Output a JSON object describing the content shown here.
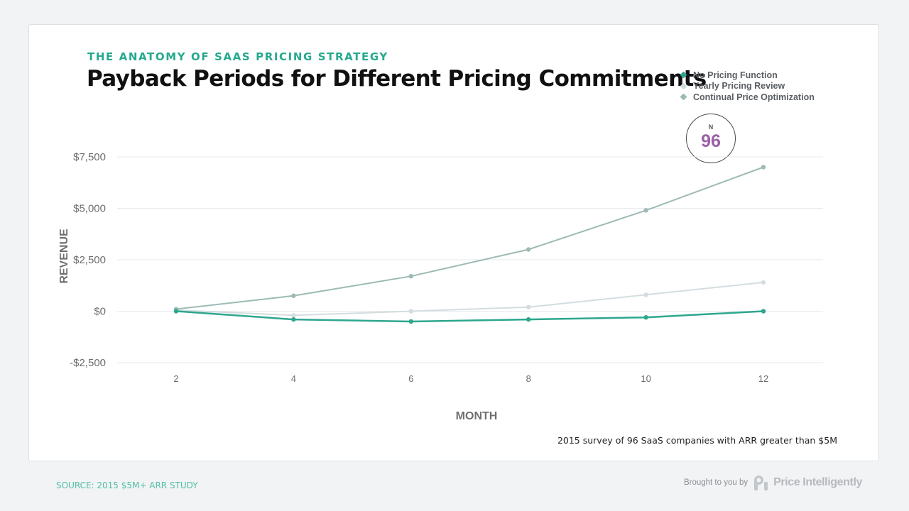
{
  "header": {
    "eyebrow": "THE ANATOMY OF SAAS PRICING STRATEGY",
    "title": "Payback Periods for Different Pricing Commitments"
  },
  "sample": {
    "label": "N",
    "value": "96"
  },
  "colors": {
    "eyebrow": "#26a98f",
    "sample_value": "#9b5fa8",
    "source": "#4fbfa6"
  },
  "chart_data": {
    "type": "line",
    "title": "Payback Periods for Different Pricing Commitments",
    "xlabel": "MONTH",
    "ylabel": "REVENUE",
    "x": [
      2,
      4,
      6,
      8,
      10,
      12
    ],
    "xlim": [
      2,
      12
    ],
    "ylim": [
      -2500,
      7500
    ],
    "yticks": [
      -2500,
      0,
      2500,
      5000,
      7500
    ],
    "ytick_labels": [
      "-$2,500",
      "$0",
      "$2,500",
      "$5,000",
      "$7,500"
    ],
    "xtick_labels": [
      "2",
      "4",
      "6",
      "8",
      "10",
      "12"
    ],
    "grid": true,
    "legend_position": "top-right",
    "series": [
      {
        "name": "No Pricing Function",
        "color": "#2ea68e",
        "values": [
          0,
          -400,
          -500,
          -400,
          -300,
          0
        ]
      },
      {
        "name": "Yearly Pricing Review",
        "color": "#d3dde0",
        "values": [
          50,
          -200,
          0,
          200,
          800,
          1400
        ]
      },
      {
        "name": "Continual Price Optimization",
        "color": "#9dbab5",
        "values": [
          100,
          750,
          1700,
          3000,
          4900,
          7000
        ]
      }
    ]
  },
  "footnote": "2015 survey of 96 SaaS companies with ARR greater than $5M",
  "footer": {
    "source": "SOURCE: 2015 $5M+ ARR STUDY",
    "brought_by": "Brought to you by",
    "brand": "Price Intelligently"
  }
}
